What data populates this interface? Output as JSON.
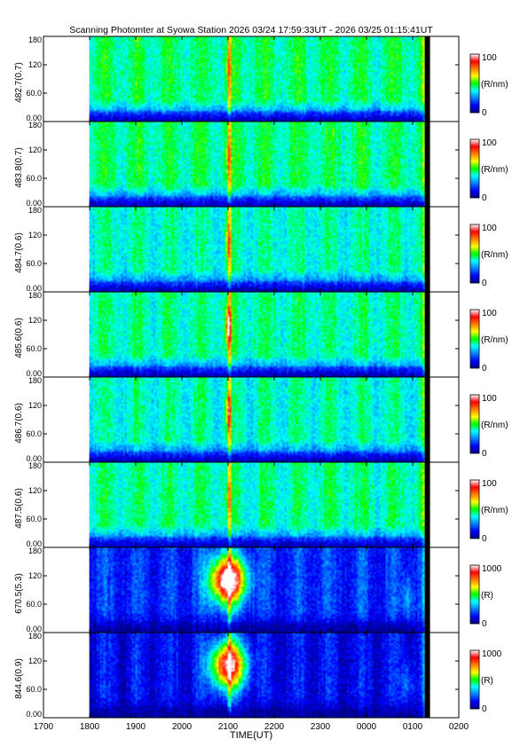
{
  "title": "Scanning Photomter at Syowa Station 2026 03/24 17:59:33UT - 2026 03/25 01:15:41UT",
  "chart_data": {
    "type": "heatmap",
    "xlabel": "TIME(UT)",
    "x_ticks": [
      "1700",
      "1800",
      "1900",
      "2000",
      "2100",
      "2200",
      "2300",
      "0000",
      "0100",
      "0200"
    ],
    "xlim_hours": [
      17,
      26
    ],
    "data_start": "17:59:33UT",
    "data_end": "01:15:41UT",
    "ylim": [
      0,
      180
    ],
    "y_ticks": [
      "0.00",
      "60.0",
      "120",
      "180"
    ],
    "colormap": [
      "#000080",
      "#0000ff",
      "#0080ff",
      "#00ffff",
      "#00ff00",
      "#ffff00",
      "#ff8000",
      "#ff0000",
      "#ffffff"
    ],
    "panels": [
      {
        "ylabel": "482.7(0.7)",
        "cbar_max": "100",
        "cbar_min": "0",
        "cbar_unit": "(R/nm)",
        "base": 0.44,
        "peak": 0.12,
        "aurora": 0.0
      },
      {
        "ylabel": "483.8(0.7)",
        "cbar_max": "100",
        "cbar_min": "0",
        "cbar_unit": "(R/nm)",
        "base": 0.44,
        "peak": 0.14,
        "aurora": 0.0
      },
      {
        "ylabel": "484.7(0.6)",
        "cbar_max": "100",
        "cbar_min": "0",
        "cbar_unit": "(R/nm)",
        "base": 0.4,
        "peak": 0.22,
        "aurora": 0.0
      },
      {
        "ylabel": "485.6(0.6)",
        "cbar_max": "100",
        "cbar_min": "0",
        "cbar_unit": "(R/nm)",
        "base": 0.42,
        "peak": 0.42,
        "aurora": 0.0
      },
      {
        "ylabel": "486.7(0.6)",
        "cbar_max": "100",
        "cbar_min": "0",
        "cbar_unit": "(R/nm)",
        "base": 0.4,
        "peak": 0.3,
        "aurora": 0.0
      },
      {
        "ylabel": "487.5(0.6)",
        "cbar_max": "100",
        "cbar_min": "0",
        "cbar_unit": "(R/nm)",
        "base": 0.42,
        "peak": 0.14,
        "aurora": 0.0
      },
      {
        "ylabel": "670.5(5.3)",
        "cbar_max": "1000",
        "cbar_min": "0",
        "cbar_unit": "(R)",
        "base": 0.17,
        "peak": 0.0,
        "aurora": 1.0
      },
      {
        "ylabel": "844.6(0.9)",
        "cbar_max": "1000",
        "cbar_min": "0",
        "cbar_unit": "(R)",
        "base": 0.12,
        "peak": 0.0,
        "aurora": 0.9
      }
    ]
  }
}
